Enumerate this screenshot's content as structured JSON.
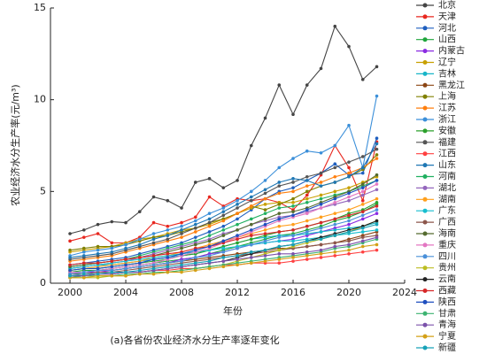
{
  "chart_data": {
    "type": "line",
    "ylabel": "农业经济水分生产率(元/m³)",
    "xlabel": "年份",
    "caption": "(a)各省份农业经济水分生产率逐年变化",
    "x": [
      2000,
      2001,
      2002,
      2003,
      2004,
      2005,
      2006,
      2007,
      2008,
      2009,
      2010,
      2011,
      2012,
      2013,
      2014,
      2015,
      2016,
      2017,
      2018,
      2019,
      2020,
      2021,
      2022
    ],
    "xlim": [
      1998.6,
      2024
    ],
    "xticks": [
      2000,
      2004,
      2008,
      2012,
      2016,
      2020,
      2024
    ],
    "ylim": [
      0,
      15
    ],
    "yticks": [
      0,
      5,
      10,
      15
    ],
    "series": [
      {
        "name": "北京",
        "color": "#444444",
        "values": [
          2.7,
          2.9,
          3.2,
          3.35,
          3.3,
          3.9,
          4.7,
          4.5,
          4.1,
          5.5,
          5.7,
          5.2,
          5.6,
          7.5,
          9.0,
          10.8,
          9.2,
          10.8,
          11.7,
          14.0,
          12.9,
          11.1,
          11.8
        ]
      },
      {
        "name": "天津",
        "color": "#e8271f",
        "values": [
          2.3,
          2.5,
          2.7,
          2.2,
          2.2,
          2.5,
          3.3,
          3.1,
          3.3,
          3.6,
          4.7,
          4.2,
          4.6,
          4.5,
          4.6,
          4.4,
          4.0,
          4.8,
          5.9,
          7.5,
          6.3,
          4.5,
          7.7
        ]
      },
      {
        "name": "河北",
        "color": "#1f5fbf",
        "values": [
          1.0,
          1.1,
          1.2,
          1.3,
          1.4,
          1.6,
          1.8,
          2.0,
          2.2,
          2.5,
          2.8,
          3.1,
          3.5,
          4.0,
          4.6,
          5.0,
          5.2,
          5.6,
          6.0,
          6.5,
          5.9,
          6.0,
          7.9
        ]
      },
      {
        "name": "山西",
        "color": "#1fa53c",
        "values": [
          0.6,
          0.7,
          0.7,
          0.8,
          0.9,
          1.0,
          1.1,
          1.2,
          1.3,
          1.4,
          1.6,
          1.8,
          2.0,
          2.2,
          2.4,
          2.6,
          2.7,
          2.9,
          3.1,
          3.4,
          3.6,
          3.9,
          4.3
        ]
      },
      {
        "name": "内蒙古",
        "color": "#8a2be2",
        "values": [
          0.5,
          0.6,
          0.6,
          0.7,
          0.8,
          0.9,
          1.0,
          1.1,
          1.3,
          1.4,
          1.6,
          1.7,
          1.9,
          2.1,
          2.2,
          2.3,
          2.4,
          2.6,
          2.8,
          3.0,
          3.2,
          3.5,
          3.8
        ]
      },
      {
        "name": "辽宁",
        "color": "#c8a000",
        "values": [
          1.7,
          1.8,
          1.9,
          2.0,
          2.2,
          2.4,
          2.5,
          2.7,
          2.9,
          3.0,
          3.2,
          3.5,
          3.8,
          4.1,
          4.3,
          4.4,
          4.4,
          4.6,
          4.8,
          5.0,
          5.2,
          5.5,
          5.8
        ]
      },
      {
        "name": "吉林",
        "color": "#18b5c8",
        "values": [
          0.8,
          0.9,
          1.0,
          1.0,
          1.1,
          1.2,
          1.3,
          1.4,
          1.5,
          1.6,
          1.8,
          2.0,
          2.2,
          2.4,
          2.5,
          2.6,
          2.6,
          2.7,
          2.8,
          2.9,
          3.0,
          3.1,
          3.3
        ]
      },
      {
        "name": "黑龙江",
        "color": "#8b4513",
        "values": [
          0.6,
          0.6,
          0.7,
          0.7,
          0.8,
          0.9,
          1.0,
          1.1,
          1.2,
          1.3,
          1.4,
          1.5,
          1.6,
          1.7,
          1.8,
          1.9,
          1.9,
          2.0,
          2.1,
          2.2,
          2.4,
          2.6,
          2.8
        ]
      },
      {
        "name": "上海",
        "color": "#808000",
        "values": [
          1.8,
          1.9,
          2.0,
          2.0,
          2.1,
          2.3,
          2.5,
          2.6,
          2.8,
          3.0,
          3.3,
          3.5,
          3.8,
          4.2,
          4.0,
          4.3,
          4.6,
          5.0,
          5.3,
          5.5,
          5.8,
          6.2,
          7.0
        ]
      },
      {
        "name": "江苏",
        "color": "#ff7f0e",
        "values": [
          1.2,
          1.3,
          1.4,
          1.5,
          1.7,
          1.9,
          2.1,
          2.3,
          2.5,
          2.8,
          3.1,
          3.4,
          3.8,
          4.2,
          4.6,
          4.9,
          5.0,
          5.3,
          5.5,
          5.8,
          6.0,
          6.3,
          6.8
        ]
      },
      {
        "name": "浙江",
        "color": "#3b8fd9",
        "values": [
          1.5,
          1.7,
          1.8,
          1.9,
          2.1,
          2.4,
          2.7,
          2.9,
          3.1,
          3.4,
          3.8,
          4.1,
          4.5,
          5.0,
          5.6,
          6.3,
          6.8,
          7.2,
          7.1,
          7.5,
          8.6,
          6.3,
          10.2
        ]
      },
      {
        "name": "安徽",
        "color": "#2ca02c",
        "values": [
          0.7,
          0.8,
          0.8,
          0.9,
          1.0,
          1.1,
          1.2,
          1.3,
          1.5,
          1.6,
          1.8,
          2.0,
          2.2,
          2.4,
          2.6,
          2.8,
          2.9,
          3.1,
          3.3,
          3.5,
          3.8,
          4.0,
          4.4
        ]
      },
      {
        "name": "福建",
        "color": "#555555",
        "values": [
          1.3,
          1.4,
          1.5,
          1.6,
          1.8,
          2.0,
          2.2,
          2.4,
          2.7,
          3.0,
          3.3,
          3.7,
          4.1,
          4.5,
          4.9,
          5.3,
          5.5,
          5.8,
          6.0,
          6.3,
          6.6,
          6.9,
          7.3
        ]
      },
      {
        "name": "江西",
        "color": "#ff4040",
        "values": [
          0.4,
          0.4,
          0.5,
          0.5,
          0.6,
          0.6,
          0.7,
          0.7,
          0.8,
          0.8,
          0.9,
          1.0,
          1.0,
          1.1,
          1.1,
          1.1,
          1.2,
          1.3,
          1.4,
          1.5,
          1.6,
          1.7,
          1.8
        ]
      },
      {
        "name": "山东",
        "color": "#1f77b4",
        "values": [
          1.4,
          1.5,
          1.6,
          1.7,
          1.9,
          2.1,
          2.4,
          2.6,
          2.9,
          3.2,
          3.5,
          3.9,
          4.3,
          4.7,
          5.1,
          5.5,
          5.7,
          5.6,
          5.3,
          5.5,
          5.8,
          6.3,
          7.6
        ]
      },
      {
        "name": "河南",
        "color": "#20b060",
        "values": [
          0.9,
          1.0,
          1.1,
          1.2,
          1.3,
          1.5,
          1.7,
          1.9,
          2.1,
          2.3,
          2.6,
          2.9,
          3.2,
          3.5,
          3.8,
          4.1,
          4.2,
          4.4,
          4.6,
          4.8,
          5.0,
          5.3,
          5.6
        ]
      },
      {
        "name": "湖北",
        "color": "#9467bd",
        "values": [
          0.8,
          0.9,
          1.0,
          1.1,
          1.2,
          1.4,
          1.6,
          1.8,
          2.0,
          2.2,
          2.4,
          2.7,
          2.9,
          3.2,
          3.4,
          3.6,
          3.7,
          3.9,
          4.1,
          4.3,
          4.5,
          4.8,
          5.1
        ]
      },
      {
        "name": "湖南",
        "color": "#ff9f1c",
        "values": [
          0.7,
          0.8,
          0.9,
          1.0,
          1.1,
          1.2,
          1.4,
          1.5,
          1.7,
          1.9,
          2.1,
          2.3,
          2.5,
          2.7,
          2.9,
          3.1,
          3.2,
          3.4,
          3.6,
          3.8,
          4.0,
          4.3,
          4.6
        ]
      },
      {
        "name": "广东",
        "color": "#17becf",
        "values": [
          0.8,
          0.9,
          1.0,
          1.1,
          1.2,
          1.3,
          1.4,
          1.5,
          1.6,
          1.7,
          1.8,
          1.9,
          2.0,
          2.1,
          2.2,
          2.3,
          2.3,
          2.4,
          2.5,
          2.6,
          2.7,
          2.8,
          2.9
        ]
      },
      {
        "name": "广西",
        "color": "#8c564b",
        "values": [
          0.5,
          0.5,
          0.6,
          0.6,
          0.7,
          0.8,
          0.9,
          1.0,
          1.1,
          1.2,
          1.3,
          1.4,
          1.5,
          1.6,
          1.7,
          1.8,
          1.9,
          2.0,
          2.1,
          2.2,
          2.3,
          2.5,
          2.6
        ]
      },
      {
        "name": "海南",
        "color": "#556b2f",
        "values": [
          0.9,
          1.0,
          1.1,
          1.2,
          1.3,
          1.4,
          1.5,
          1.7,
          1.9,
          2.1,
          2.3,
          2.6,
          2.9,
          3.2,
          3.5,
          3.8,
          3.9,
          4.1,
          4.4,
          4.7,
          5.0,
          5.4,
          5.9
        ]
      },
      {
        "name": "重庆",
        "color": "#e377c2",
        "values": [
          0.6,
          0.6,
          0.7,
          0.8,
          0.9,
          1.0,
          1.1,
          1.3,
          1.5,
          1.7,
          1.9,
          2.2,
          2.5,
          2.8,
          3.1,
          3.4,
          3.6,
          3.8,
          4.1,
          4.4,
          4.7,
          5.0,
          5.4
        ]
      },
      {
        "name": "四川",
        "color": "#4a90d9",
        "values": [
          0.5,
          0.6,
          0.7,
          0.7,
          0.8,
          0.9,
          1.0,
          1.1,
          1.2,
          1.4,
          1.5,
          1.7,
          1.9,
          2.1,
          2.3,
          2.5,
          2.6,
          2.8,
          3.0,
          3.2,
          3.4,
          3.7,
          4.0
        ]
      },
      {
        "name": "贵州",
        "color": "#bcbd22",
        "values": [
          0.3,
          0.3,
          0.3,
          0.4,
          0.4,
          0.5,
          0.5,
          0.6,
          0.7,
          0.8,
          0.9,
          1.0,
          1.2,
          1.4,
          1.6,
          1.8,
          2.0,
          2.2,
          2.4,
          2.6,
          2.8,
          3.1,
          3.4
        ]
      },
      {
        "name": "云南",
        "color": "#222222",
        "values": [
          0.4,
          0.4,
          0.5,
          0.5,
          0.6,
          0.6,
          0.7,
          0.8,
          0.9,
          1.0,
          1.1,
          1.2,
          1.4,
          1.6,
          1.8,
          2.0,
          2.1,
          2.3,
          2.5,
          2.7,
          2.9,
          3.1,
          3.4
        ]
      },
      {
        "name": "西藏",
        "color": "#d62728",
        "values": [
          1.0,
          1.1,
          1.1,
          1.2,
          1.3,
          1.4,
          1.5,
          1.6,
          1.7,
          1.9,
          2.0,
          2.2,
          2.4,
          2.6,
          2.7,
          2.8,
          2.9,
          3.1,
          3.3,
          3.5,
          3.7,
          3.9,
          4.2
        ]
      },
      {
        "name": "陕西",
        "color": "#1f4fbf",
        "values": [
          0.7,
          0.8,
          0.8,
          0.9,
          1.0,
          1.1,
          1.3,
          1.4,
          1.6,
          1.8,
          2.0,
          2.3,
          2.6,
          2.9,
          3.2,
          3.5,
          3.7,
          4.0,
          4.3,
          4.6,
          4.9,
          5.2,
          5.6
        ]
      },
      {
        "name": "甘肃",
        "color": "#3cb371",
        "values": [
          0.3,
          0.4,
          0.4,
          0.4,
          0.5,
          0.5,
          0.6,
          0.6,
          0.7,
          0.8,
          0.9,
          1.0,
          1.1,
          1.2,
          1.3,
          1.4,
          1.5,
          1.6,
          1.7,
          1.9,
          2.0,
          2.2,
          2.4
        ]
      },
      {
        "name": "青海",
        "color": "#7b52ab",
        "values": [
          0.4,
          0.4,
          0.5,
          0.5,
          0.6,
          0.6,
          0.7,
          0.8,
          0.9,
          1.0,
          1.1,
          1.2,
          1.3,
          1.4,
          1.5,
          1.6,
          1.6,
          1.7,
          1.8,
          2.0,
          2.1,
          2.3,
          2.5
        ]
      },
      {
        "name": "宁夏",
        "color": "#d4a017",
        "values": [
          0.3,
          0.3,
          0.4,
          0.4,
          0.4,
          0.5,
          0.5,
          0.6,
          0.6,
          0.7,
          0.8,
          0.9,
          1.0,
          1.1,
          1.2,
          1.3,
          1.4,
          1.5,
          1.6,
          1.7,
          1.8,
          2.0,
          2.1
        ]
      },
      {
        "name": "新疆",
        "color": "#17a2b8",
        "values": [
          0.4,
          0.5,
          0.5,
          0.6,
          0.6,
          0.7,
          0.8,
          0.9,
          1.0,
          1.1,
          1.2,
          1.4,
          1.5,
          1.7,
          1.8,
          2.0,
          2.1,
          2.3,
          2.4,
          2.6,
          2.8,
          3.0,
          3.2
        ]
      }
    ]
  }
}
